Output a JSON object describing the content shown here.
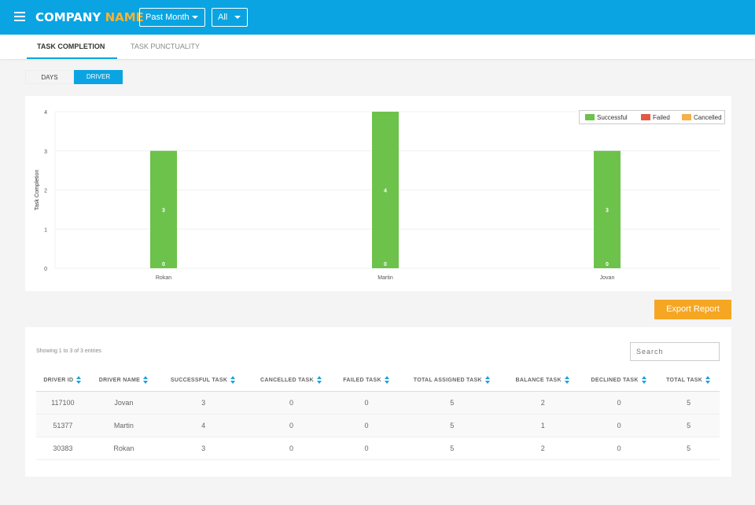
{
  "header": {
    "logo_main": "COMPANY",
    "logo_accent": "NAME",
    "period_select": "Past Month",
    "filter_select": "All"
  },
  "tabs": [
    {
      "label": "TASK COMPLETION",
      "active": true
    },
    {
      "label": "TASK PUNCTUALITY",
      "active": false
    }
  ],
  "view_toggle": {
    "days": "DAYS",
    "driver": "DRIVER",
    "selected": "DRIVER"
  },
  "colors": {
    "accent": "#0aa4e2",
    "successful": "#6cc24a",
    "failed": "#e05a47",
    "cancelled": "#f5b04a",
    "export": "#f5a623"
  },
  "chart_data": {
    "type": "bar",
    "categories": [
      "Rokan",
      "Martin",
      "Jovan"
    ],
    "series": [
      {
        "name": "Successful",
        "values": [
          3,
          4,
          3
        ],
        "color": "#6cc24a"
      },
      {
        "name": "Failed",
        "values": [
          0,
          0,
          0
        ],
        "color": "#e05a47"
      },
      {
        "name": "Cancelled",
        "values": [
          0,
          0,
          0
        ],
        "color": "#f5b04a"
      }
    ],
    "data_labels": [
      [
        "3",
        "0"
      ],
      [
        "4",
        "0"
      ],
      [
        "3",
        "0"
      ]
    ],
    "ylabel": "Task Completion",
    "yticks": [
      "0",
      "1",
      "2",
      "3",
      "4"
    ],
    "ylim": [
      0,
      4
    ],
    "stacked": true,
    "legend_position": "top-right",
    "grid": true
  },
  "export_label": "Export Report",
  "table": {
    "info": "Showing 1 to 3 of 3 entries",
    "search_placeholder": "Search",
    "columns": [
      "DRIVER ID",
      "DRIVER NAME",
      "SUCCESSFUL TASK",
      "CANCELLED TASK",
      "FAILED TASK",
      "TOTAL ASSIGNED TASK",
      "BALANCE TASK",
      "DECLINED TASK",
      "TOTAL TASK"
    ],
    "rows": [
      [
        "117100",
        "Jovan",
        "3",
        "0",
        "0",
        "5",
        "2",
        "0",
        "5"
      ],
      [
        "51377",
        "Martin",
        "4",
        "0",
        "0",
        "5",
        "1",
        "0",
        "5"
      ],
      [
        "30383",
        "Rokan",
        "3",
        "0",
        "0",
        "5",
        "2",
        "0",
        "5"
      ]
    ]
  }
}
